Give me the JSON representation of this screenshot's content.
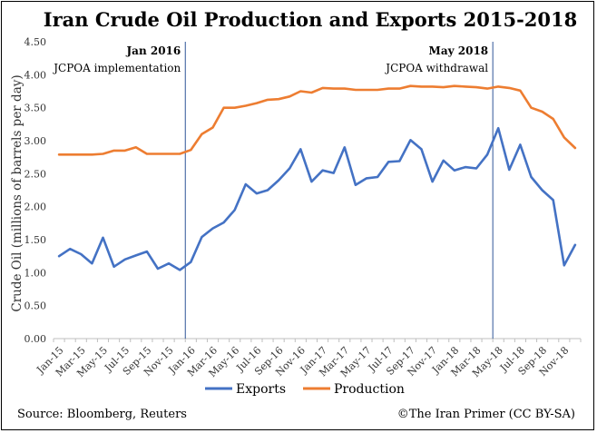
{
  "chart_data": {
    "type": "line",
    "title": "Iran Crude Oil Production and Exports 2015-2018",
    "xlabel": "",
    "ylabel": "Crude Oil (millions of barrels per day)",
    "ylim": [
      0,
      4.5
    ],
    "yticks": [
      "0.00",
      "0.50",
      "1.00",
      "1.50",
      "2.00",
      "2.50",
      "3.00",
      "3.50",
      "4.00",
      "4.50"
    ],
    "grid": false,
    "legend_position": "bottom",
    "x": [
      "Jan-15",
      "Feb-15",
      "Mar-15",
      "Apr-15",
      "May-15",
      "Jun-15",
      "Jul-15",
      "Aug-15",
      "Sep-15",
      "Oct-15",
      "Nov-15",
      "Dec-15",
      "Jan-16",
      "Feb-16",
      "Mar-16",
      "Apr-16",
      "May-16",
      "Jun-16",
      "Jul-16",
      "Aug-16",
      "Sep-16",
      "Oct-16",
      "Nov-16",
      "Dec-16",
      "Jan-17",
      "Feb-17",
      "Mar-17",
      "Apr-17",
      "May-17",
      "Jun-17",
      "Jul-17",
      "Aug-17",
      "Sep-17",
      "Oct-17",
      "Nov-17",
      "Dec-17",
      "Jan-18",
      "Feb-18",
      "Mar-18",
      "Apr-18",
      "May-18",
      "Jun-18",
      "Jul-18",
      "Aug-18",
      "Sep-18",
      "Oct-18",
      "Nov-18",
      "Dec-18"
    ],
    "x_tick_labels": [
      "Jan-15",
      "Mar-15",
      "May-15",
      "Jul-15",
      "Sep-15",
      "Nov-15",
      "Jan-16",
      "Mar-16",
      "May-16",
      "Jul-16",
      "Sep-16",
      "Nov-16",
      "Jan-17",
      "Mar-17",
      "May-17",
      "Jul-17",
      "Sep-17",
      "Nov-17",
      "Jan-18",
      "Mar-18",
      "May-18",
      "Jul-18",
      "Sep-18",
      "Nov-18"
    ],
    "series": [
      {
        "name": "Exports",
        "color": "#4472C4",
        "values": [
          1.25,
          1.36,
          1.28,
          1.14,
          1.53,
          1.09,
          1.2,
          1.26,
          1.32,
          1.06,
          1.14,
          1.04,
          1.16,
          1.54,
          1.67,
          1.76,
          1.95,
          2.34,
          2.2,
          2.25,
          2.4,
          2.58,
          2.87,
          2.38,
          2.55,
          2.51,
          2.9,
          2.33,
          2.43,
          2.45,
          2.68,
          2.69,
          3.01,
          2.87,
          2.38,
          2.7,
          2.55,
          2.6,
          2.58,
          2.79,
          3.19,
          2.56,
          2.94,
          2.45,
          2.25,
          2.1,
          1.11,
          1.42
        ]
      },
      {
        "name": "Production",
        "color": "#ED7D31",
        "values": [
          2.79,
          2.79,
          2.79,
          2.79,
          2.8,
          2.85,
          2.85,
          2.9,
          2.8,
          2.8,
          2.8,
          2.8,
          2.86,
          3.1,
          3.2,
          3.5,
          3.5,
          3.53,
          3.57,
          3.62,
          3.63,
          3.67,
          3.75,
          3.73,
          3.8,
          3.79,
          3.79,
          3.77,
          3.77,
          3.77,
          3.79,
          3.79,
          3.83,
          3.82,
          3.82,
          3.81,
          3.83,
          3.82,
          3.81,
          3.79,
          3.82,
          3.8,
          3.76,
          3.5,
          3.44,
          3.33,
          3.05,
          2.89
        ]
      }
    ],
    "annotations": [
      {
        "x": "Dec-15",
        "title": "Jan 2016",
        "text": "JCPOA implementation"
      },
      {
        "x": "Apr-18",
        "title": "May 2018",
        "text": "JCPOA withdrawal"
      }
    ]
  },
  "footer": {
    "source": "Source: Bloomberg,  Reuters",
    "credit": "©The Iran Primer (CC BY-SA)"
  }
}
